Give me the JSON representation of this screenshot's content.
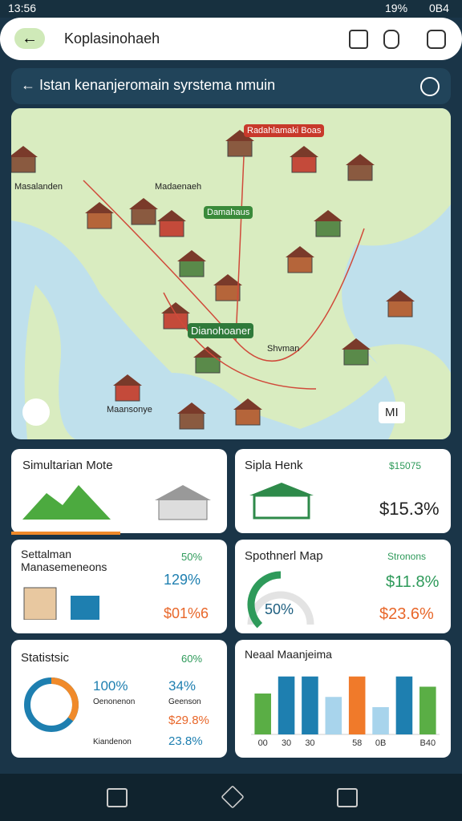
{
  "status": {
    "time": "13:56",
    "battery": "19%",
    "extra": "0B4"
  },
  "app_bar": {
    "title": "Koplasinohaeh"
  },
  "search": {
    "text": "Istan kenanjeromain syrstema nmuin"
  },
  "map": {
    "labels": [
      "Radahlamaki Boas",
      "Masalanden",
      "Madaenaeh",
      "Damahaus",
      "Dianohoaner",
      "Shvman",
      "Maansonye",
      "MI"
    ]
  },
  "cards": [
    {
      "title": "Simultarian Mote"
    },
    {
      "title": "Sipla Henk",
      "sub": "$15075",
      "value": "$15.3%"
    },
    {
      "title": "Settalman Manasemeneons",
      "sub": "50%",
      "value": "129%",
      "value2": "$01%6"
    },
    {
      "title": "Spothnerl Map",
      "sub": "Stronons",
      "value": "$11.8%",
      "value2": "$23.6%",
      "gauge": {
        "value": 50,
        "label": "50%"
      }
    },
    {
      "title": "Statistsic",
      "sub": "60%",
      "left_value": "100%",
      "left_label": "Oenonenon",
      "left_label2": "Kiandenon",
      "right_value": "34%",
      "right_label": "Geenson",
      "right_value2": "$29.8%",
      "right_value3": "23.8%"
    },
    {
      "title": "Neaal Maanjeima",
      "chart": {
        "type": "bar",
        "categories": [
          "00",
          "30",
          "30",
          "",
          "58",
          "0B",
          "",
          "B40"
        ],
        "values": [
          60,
          85,
          85,
          55,
          85,
          40,
          85,
          70
        ],
        "colors": [
          "#5aae45",
          "#1e7fb0",
          "#1e7fb0",
          "#a8d4ec",
          "#f07a2a",
          "#a8d4ec",
          "#1e7fb0",
          "#5aae45"
        ]
      }
    }
  ]
}
